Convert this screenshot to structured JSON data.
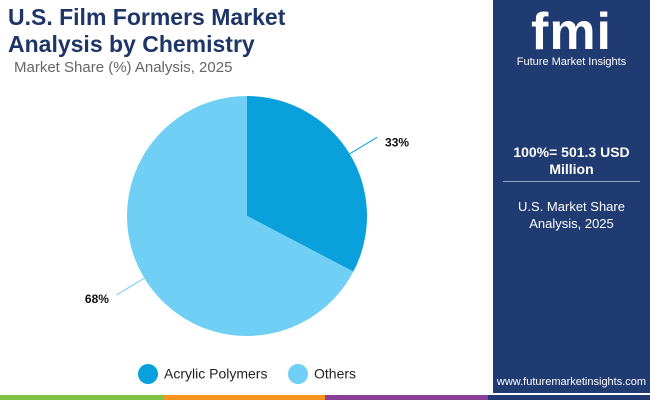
{
  "chart_data": {
    "type": "pie",
    "title": "U.S. Film Formers Market Analysis by Chemistry",
    "subtitle": "Market Share (%) Analysis, 2025",
    "categories": [
      "Acrylic Polymers",
      "Others"
    ],
    "values": [
      33,
      68
    ],
    "value_labels": [
      "33%",
      "68%"
    ],
    "colors": [
      "#0aa0db",
      "#6fcff4"
    ],
    "legend": "bottom"
  },
  "sidebar": {
    "logo": "fmi",
    "brand": "Future Market Insights",
    "total": "100%= 501.3 USD Million",
    "caption": "U.S. Market Share Analysis, 2025",
    "website": "www.futuremarketinsights.com"
  }
}
